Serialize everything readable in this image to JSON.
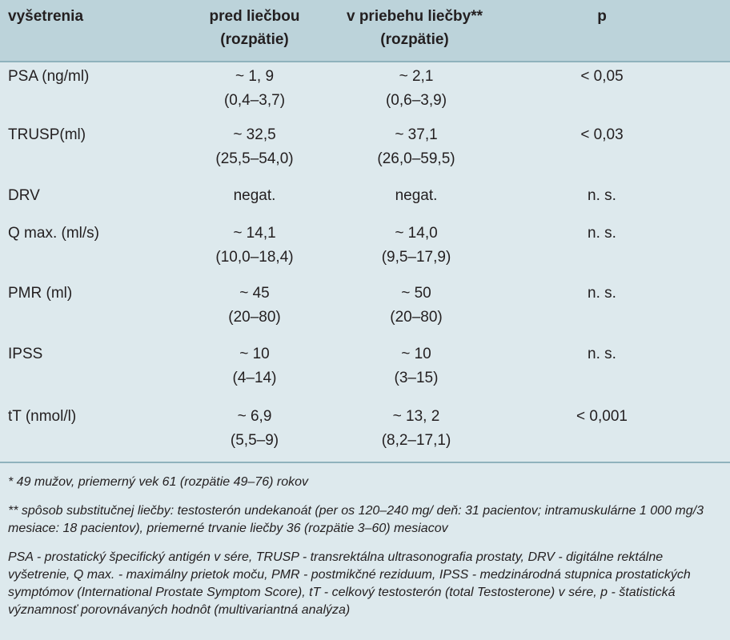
{
  "header": {
    "exam": "vyšetrenia",
    "pre_line1": "pred liečbou",
    "pre_line2": "(rozpätie)",
    "during_line1": "v priebehu liečby**",
    "during_line2": "(rozpätie)",
    "p": "p"
  },
  "rows": [
    {
      "exam": "PSA (ng/ml)",
      "pre_value": "~ 1, 9",
      "pre_range": "(0,4–3,7)",
      "during_value": "~ 2,1",
      "during_range": "(0,6–3,9)",
      "p": "< 0,05"
    },
    {
      "exam": "TRUSP(ml)",
      "pre_value": "~ 32,5",
      "pre_range": "(25,5–54,0)",
      "during_value": "~ 37,1",
      "during_range": "(26,0–59,5)",
      "p": "< 0,03"
    },
    {
      "exam": "DRV",
      "pre_value": "negat.",
      "pre_range": "",
      "during_value": "negat.",
      "during_range": "",
      "p": "n. s."
    },
    {
      "exam": "Q max. (ml/s)",
      "pre_value": "~ 14,1",
      "pre_range": "(10,0–18,4)",
      "during_value": "~ 14,0",
      "during_range": "(9,5–17,9)",
      "p": "n. s."
    },
    {
      "exam": "PMR (ml)",
      "pre_value": "~ 45",
      "pre_range": "(20–80)",
      "during_value": "~ 50",
      "during_range": "(20–80)",
      "p": "n. s."
    },
    {
      "exam": "IPSS",
      "pre_value": "~ 10",
      "pre_range": "(4–14)",
      "during_value": "~ 10",
      "during_range": "(3–15)",
      "p": "n. s."
    },
    {
      "exam": "tT (nmol/l)",
      "pre_value": "~ 6,9",
      "pre_range": "(5,5–9)",
      "during_value": "~ 13, 2",
      "during_range": "(8,2–17,1)",
      "p": "< 0,001"
    }
  ],
  "footnotes": {
    "note1": "* 49 mužov, priemerný vek 61 (rozpätie 49–76) rokov",
    "note2": "** spôsob substitučnej liečby: testosterón undekanoát (per os 120–240 mg/ deň: 31 pacientov; intramuskulárne 1 000 mg/3 mesiace: 18 pacientov), priemerné trvanie liečby 36 (rozpätie 3–60) mesiacov",
    "note3": "PSA - prostatický špecifický antigén v sére, TRUSP - transrektálna ultrasonografia prostaty, DRV - digitálne rektálne vyšetrenie, Q max. - maximálny prietok moču, PMR - postmikčné reziduum, IPSS - medzinárodná stupnica prostatických symptómov (International Prostate Symptom Score), tT - celkový testosterón (total Testosterone) v sére, p - štatistická významnosť porovnávaných hodnôt (multivariantná analýza)"
  }
}
